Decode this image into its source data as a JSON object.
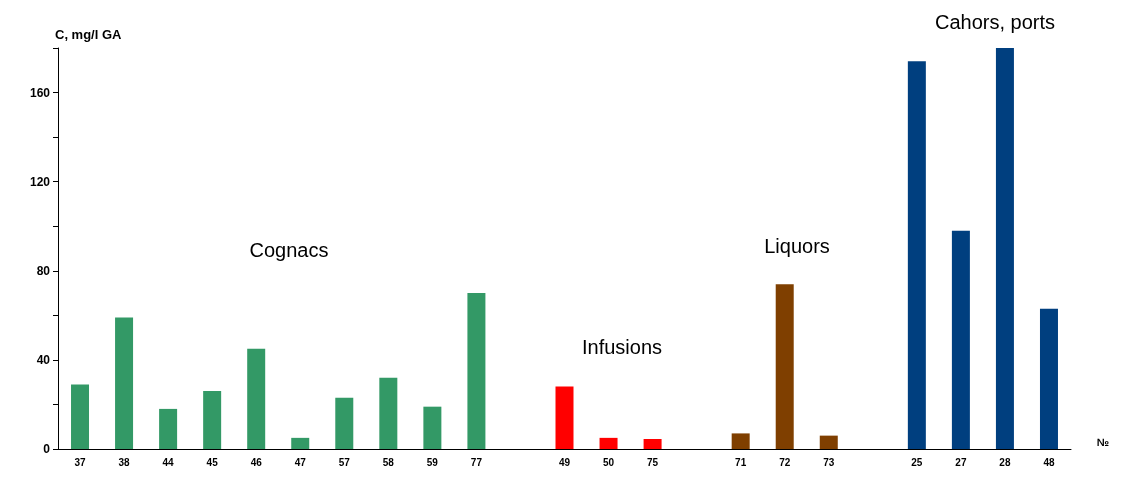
{
  "chart_data": {
    "type": "bar",
    "ylabel": "C, mg/l GA",
    "xlabel": "№",
    "categories": [
      "37",
      "38",
      "44",
      "45",
      "46",
      "47",
      "57",
      "58",
      "59",
      "77",
      null,
      "49",
      "50",
      "75",
      null,
      "71",
      "72",
      "73",
      null,
      "25",
      "27",
      "28",
      "48"
    ],
    "values": [
      29,
      59,
      18,
      26,
      45,
      5,
      23,
      32,
      19,
      70,
      null,
      28,
      5,
      4.5,
      null,
      7,
      74,
      6,
      null,
      174,
      98,
      180,
      63
    ],
    "colors": [
      "#339966",
      "#339966",
      "#339966",
      "#339966",
      "#339966",
      "#339966",
      "#339966",
      "#339966",
      "#339966",
      "#339966",
      null,
      "#ff0000",
      "#ff0000",
      "#ff0000",
      null,
      "#7f3f00",
      "#7f3f00",
      "#7f3f00",
      null,
      "#003f7f",
      "#003f7f",
      "#003f7f",
      "#003f7f"
    ],
    "ylim": [
      0,
      180
    ],
    "yticks": [
      0,
      {
        "value": 20,
        "label": null
      },
      40,
      {
        "value": 60,
        "label": null
      },
      80,
      {
        "value": 100,
        "label": null
      },
      120,
      {
        "value": 140,
        "label": null
      },
      160,
      {
        "value": 180,
        "label": null
      }
    ],
    "annotations": [
      "Cognacs",
      "Infusions",
      "Liquors",
      "Cahors, ports"
    ],
    "grid": false
  }
}
